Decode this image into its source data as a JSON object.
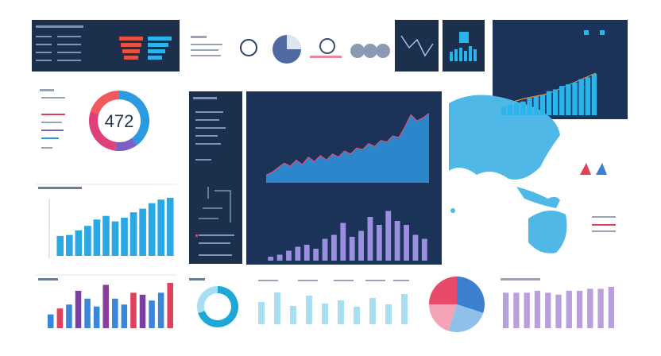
{
  "donut_text": "472",
  "donut": {
    "values": [
      40,
      12,
      28,
      20
    ],
    "colors": [
      "#2b9ae0",
      "#7b5fc4",
      "#e0407a",
      "#f05a5a"
    ]
  },
  "blue_bars": {
    "values": [
      22,
      23,
      28,
      33,
      40,
      44,
      38,
      42,
      48,
      52,
      58,
      62,
      64
    ],
    "ylim": [
      0,
      70
    ],
    "color": "#2aa8e4"
  },
  "color_bars": {
    "values": [
      14,
      20,
      24,
      38,
      30,
      22,
      44,
      30,
      24,
      36,
      34,
      28,
      36,
      46
    ],
    "ylim": [
      0,
      50
    ],
    "colors": [
      "#3a86d8",
      "#e0405a",
      "#3a86d8",
      "#7a3fa0",
      "#3a86d8",
      "#3a86d8",
      "#8a3f9a",
      "#3a86d8",
      "#3a86d8",
      "#e0405a",
      "#7a3fa0",
      "#3a86d8",
      "#3a86d8",
      "#e0405a"
    ]
  },
  "area": {
    "values": [
      10,
      14,
      20,
      26,
      22,
      30,
      24,
      34,
      28,
      36,
      30,
      38,
      34,
      42,
      38,
      46,
      44,
      52,
      48,
      56,
      54,
      62,
      60,
      74,
      90,
      82,
      86,
      92
    ],
    "ylim": [
      0,
      100
    ],
    "color": "#2d8fd8"
  },
  "purple_bars": {
    "values": [
      4,
      6,
      10,
      14,
      16,
      12,
      22,
      26,
      38,
      24,
      30,
      44,
      36,
      50,
      40,
      36,
      26,
      22
    ],
    "ylim": [
      0,
      60
    ],
    "color": "#9b8fe0"
  },
  "panel_bars": {
    "values": [
      10,
      12,
      14,
      16,
      20,
      22,
      24,
      28,
      30,
      34,
      36,
      38,
      42,
      44,
      48
    ],
    "ylim": [
      0,
      60
    ],
    "color": "#2ab4ec"
  },
  "lavender_bars": {
    "values": [
      36,
      36,
      36,
      38,
      36,
      34,
      38,
      38,
      40,
      40,
      42
    ],
    "ylim": [
      0,
      50
    ],
    "color": "#b9a0dc"
  },
  "ring": {
    "values": [
      70,
      30
    ],
    "colors": [
      "#1ea8d8",
      "#a8def2"
    ]
  },
  "pie": {
    "values": [
      30,
      25,
      20,
      25
    ],
    "colors": [
      "#3a7fd0",
      "#8fc0ea",
      "#f4a2b6",
      "#e84a6a"
    ]
  }
}
